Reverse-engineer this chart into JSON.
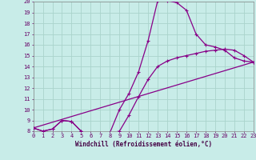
{
  "xlabel": "Windchill (Refroidissement éolien,°C)",
  "xlim": [
    0,
    23
  ],
  "ylim": [
    8,
    20
  ],
  "xticks": [
    0,
    1,
    2,
    3,
    4,
    5,
    6,
    7,
    8,
    9,
    10,
    11,
    12,
    13,
    14,
    15,
    16,
    17,
    18,
    19,
    20,
    21,
    22,
    23
  ],
  "yticks": [
    8,
    9,
    10,
    11,
    12,
    13,
    14,
    15,
    16,
    17,
    18,
    19,
    20
  ],
  "bg_color": "#c8ece8",
  "line_color": "#880088",
  "grid_color": "#aad4cc",
  "line1_x": [
    0,
    1,
    2,
    3,
    4,
    5,
    6,
    7,
    8,
    9,
    10,
    11,
    12,
    13,
    14,
    15,
    16,
    17,
    18,
    19,
    20,
    21,
    22,
    23
  ],
  "line1_y": [
    8.3,
    8.0,
    8.2,
    9.0,
    8.9,
    8.0,
    7.7,
    7.7,
    7.85,
    10.0,
    11.5,
    13.5,
    16.4,
    20.1,
    20.1,
    19.9,
    19.2,
    17.0,
    16.0,
    15.8,
    15.5,
    14.8,
    14.5,
    14.4
  ],
  "line2_x": [
    0,
    1,
    2,
    3,
    4,
    5,
    6,
    7,
    8,
    9,
    10,
    11,
    12,
    13,
    14,
    15,
    16,
    17,
    18,
    19,
    20,
    21,
    22,
    23
  ],
  "line2_y": [
    8.3,
    8.0,
    8.2,
    9.0,
    8.9,
    8.0,
    7.7,
    7.7,
    7.85,
    8.0,
    9.5,
    11.2,
    12.8,
    14.0,
    14.5,
    14.8,
    15.0,
    15.2,
    15.4,
    15.5,
    15.6,
    15.5,
    15.0,
    14.4
  ],
  "line3_x": [
    0,
    23
  ],
  "line3_y": [
    8.3,
    14.4
  ]
}
